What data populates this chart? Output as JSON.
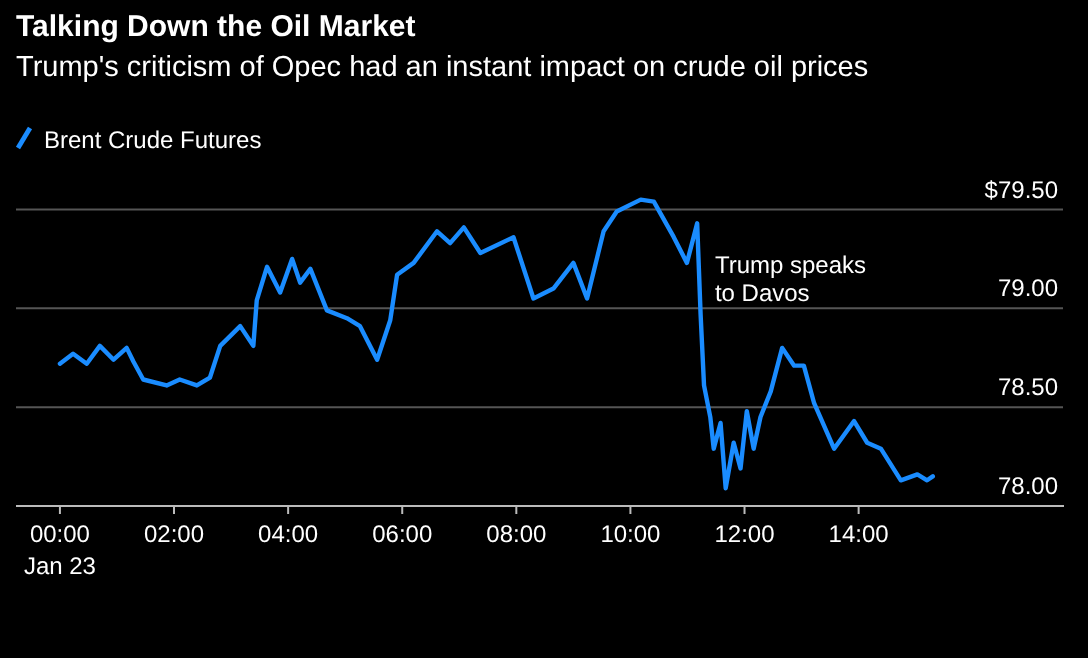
{
  "chart_data": {
    "type": "line",
    "title": "Talking Down the Oil Market",
    "subtitle": "Trump's criticism of Opec had an instant impact on crude oil prices",
    "x": [
      0,
      0.23,
      0.47,
      0.7,
      0.94,
      1.17,
      1.29,
      1.46,
      1.87,
      2.1,
      2.4,
      2.63,
      2.81,
      3.16,
      3.39,
      3.45,
      3.63,
      3.86,
      4.07,
      4.21,
      4.39,
      4.68,
      5.03,
      5.26,
      5.56,
      5.79,
      5.91,
      6.2,
      6.61,
      6.84,
      7.08,
      7.37,
      7.95,
      8.3,
      8.65,
      9.0,
      9.24,
      9.53,
      9.76,
      10.18,
      10.41,
      10.76,
      10.99,
      11.17,
      11.23,
      11.29,
      11.4,
      11.46,
      11.58,
      11.67,
      11.81,
      11.93,
      12.04,
      12.16,
      12.28,
      12.46,
      12.66,
      12.87,
      13.04,
      13.22,
      13.57,
      13.92,
      14.15,
      14.39,
      14.74,
      15.03,
      15.2,
      15.3
    ],
    "series": [
      {
        "name": "Brent Crude Futures",
        "color": "#1a8cff",
        "values": [
          78.72,
          78.77,
          78.72,
          78.81,
          78.74,
          78.8,
          78.73,
          78.64,
          78.61,
          78.64,
          78.61,
          78.65,
          78.81,
          78.91,
          78.81,
          79.04,
          79.21,
          79.08,
          79.25,
          79.13,
          79.2,
          78.99,
          78.95,
          78.91,
          78.74,
          78.94,
          79.17,
          79.23,
          79.39,
          79.33,
          79.41,
          79.28,
          79.36,
          79.05,
          79.1,
          79.23,
          79.05,
          79.39,
          79.49,
          79.55,
          79.54,
          79.36,
          79.23,
          79.43,
          78.97,
          78.61,
          78.45,
          78.29,
          78.42,
          78.09,
          78.32,
          78.19,
          78.48,
          78.29,
          78.45,
          78.58,
          78.8,
          78.71,
          78.71,
          78.52,
          78.29,
          78.43,
          78.32,
          78.29,
          78.13,
          78.16,
          78.13,
          78.15
        ]
      }
    ],
    "xlim": [
      -0.77,
      17.6
    ],
    "xticks": [
      {
        "value": 0,
        "label": "00:00"
      },
      {
        "value": 2,
        "label": "02:00"
      },
      {
        "value": 4,
        "label": "04:00"
      },
      {
        "value": 6,
        "label": "06:00"
      },
      {
        "value": 8,
        "label": "08:00"
      },
      {
        "value": 10,
        "label": "10:00"
      },
      {
        "value": 12,
        "label": "12:00"
      },
      {
        "value": 14,
        "label": "14:00"
      }
    ],
    "ylim": [
      78,
      79.7
    ],
    "yticks": [
      {
        "value": 78,
        "label": "78.00"
      },
      {
        "value": 78.5,
        "label": "78.50"
      },
      {
        "value": 79,
        "label": "79.00"
      },
      {
        "value": 79.5,
        "label": "$79.50"
      }
    ],
    "grid": "y",
    "legend": "top left",
    "marker": "none",
    "line_style": "solid",
    "annotations": [
      {
        "text": "Trump speaks to Davos",
        "x": 11.2,
        "y": 79.43
      },
      "Jan 23"
    ]
  }
}
